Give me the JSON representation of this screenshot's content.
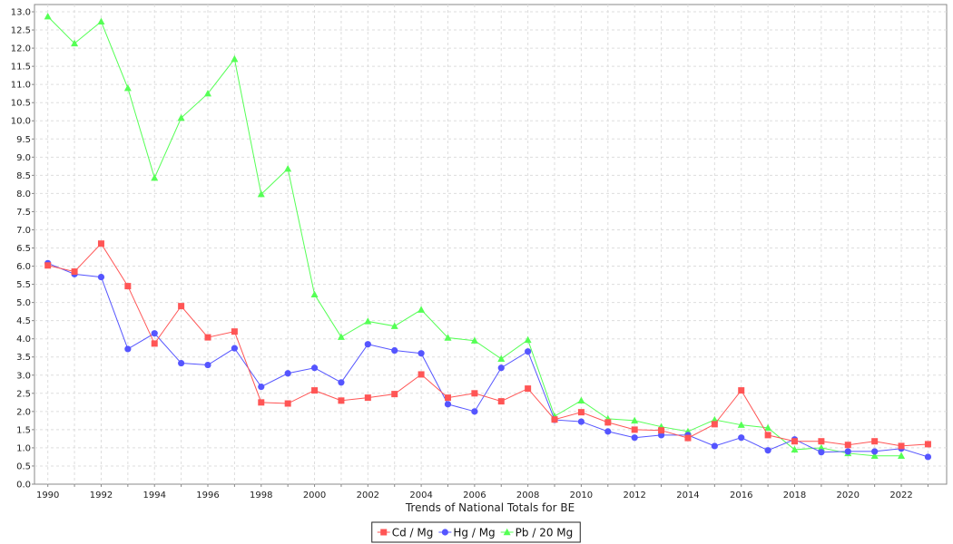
{
  "chart_data": {
    "type": "line",
    "xlabel": "Trends of National Totals for BE",
    "ylabel": "",
    "xlim": [
      1989.5,
      2023.7
    ],
    "ylim": [
      0,
      13.2
    ],
    "ytick_step": 0.5,
    "xtick_step": 2,
    "grid": true,
    "legend_position": "bottom-center",
    "x": [
      1990,
      1991,
      1992,
      1993,
      1994,
      1995,
      1996,
      1997,
      1998,
      1999,
      2000,
      2001,
      2002,
      2003,
      2004,
      2005,
      2006,
      2007,
      2008,
      2009,
      2010,
      2011,
      2012,
      2013,
      2014,
      2015,
      2016,
      2017,
      2018,
      2019,
      2020,
      2021,
      2022,
      2023
    ],
    "series": [
      {
        "name": "Cd / Mg",
        "color": "#ff5555",
        "marker": "square",
        "values": [
          6.02,
          5.85,
          6.62,
          5.45,
          3.87,
          4.9,
          4.04,
          4.2,
          2.25,
          2.22,
          2.58,
          2.3,
          2.38,
          2.48,
          3.02,
          2.38,
          2.5,
          2.28,
          2.63,
          1.78,
          1.98,
          1.7,
          1.5,
          1.48,
          1.27,
          1.65,
          2.58,
          1.35,
          1.18,
          1.18,
          1.08,
          1.18,
          1.05,
          1.1
        ]
      },
      {
        "name": "Hg / Mg",
        "color": "#5555ff",
        "marker": "circle",
        "values": [
          6.08,
          5.78,
          5.7,
          3.72,
          4.15,
          3.33,
          3.28,
          3.74,
          2.68,
          3.05,
          3.2,
          2.8,
          3.85,
          3.68,
          3.6,
          2.2,
          2.0,
          3.2,
          3.65,
          1.77,
          1.72,
          1.45,
          1.28,
          1.35,
          1.35,
          1.05,
          1.28,
          0.93,
          1.23,
          0.88,
          0.9,
          0.9,
          0.98,
          0.75
        ]
      },
      {
        "name": "Pb / 20 Mg",
        "color": "#55ff55",
        "marker": "triangle",
        "values": [
          12.87,
          12.13,
          12.73,
          10.9,
          8.43,
          10.08,
          10.75,
          11.7,
          7.98,
          8.68,
          5.22,
          4.05,
          4.48,
          4.35,
          4.8,
          4.03,
          3.95,
          3.45,
          3.97,
          1.87,
          2.3,
          1.8,
          1.75,
          1.58,
          1.45,
          1.77,
          1.63,
          1.55,
          0.95,
          1.0,
          0.85,
          0.78,
          0.78,
          null
        ]
      }
    ]
  }
}
